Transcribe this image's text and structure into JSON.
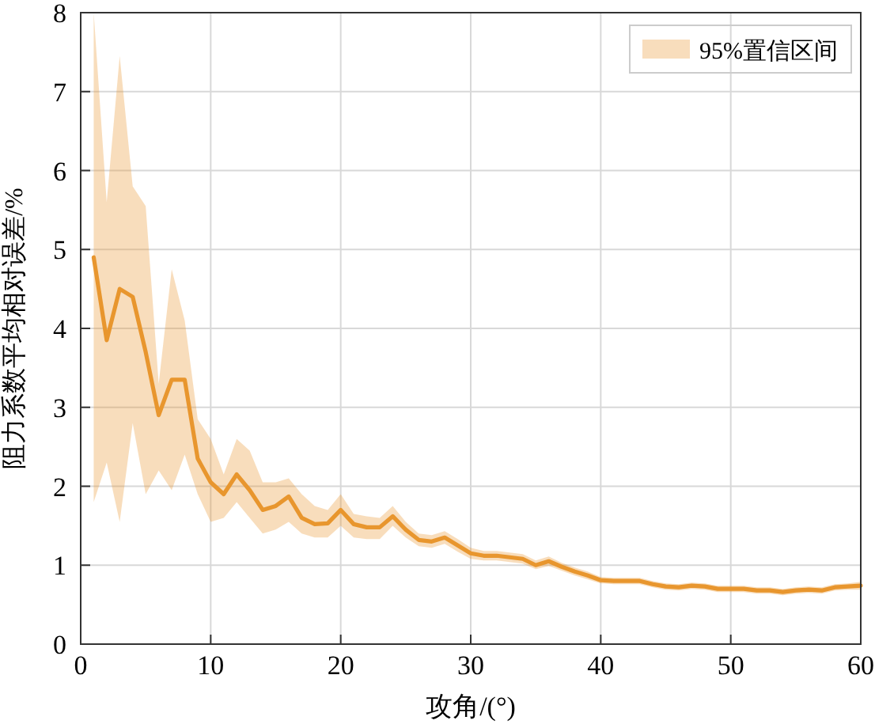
{
  "chart_data": {
    "type": "line",
    "xlabel": "攻角/(°)",
    "ylabel": "阻力系数平均相对误差/%",
    "xlim": [
      0,
      60
    ],
    "ylim": [
      0,
      8
    ],
    "xticks": [
      0,
      10,
      20,
      30,
      40,
      50,
      60
    ],
    "yticks": [
      0,
      1,
      2,
      3,
      4,
      5,
      6,
      7,
      8
    ],
    "grid": true,
    "legend": "top right",
    "line_style": "solid",
    "marker": "none",
    "x": [
      1,
      2,
      3,
      4,
      5,
      6,
      7,
      8,
      9,
      10,
      11,
      12,
      13,
      14,
      15,
      16,
      17,
      18,
      19,
      20,
      21,
      22,
      23,
      24,
      25,
      26,
      27,
      28,
      29,
      30,
      31,
      32,
      33,
      34,
      35,
      36,
      37,
      38,
      39,
      40,
      41,
      42,
      43,
      44,
      45,
      46,
      47,
      48,
      49,
      50,
      51,
      52,
      53,
      54,
      55,
      56,
      57,
      58,
      59,
      60
    ],
    "series": [
      {
        "name": "95%置信区间",
        "color": "#e8962e",
        "values": [
          4.9,
          3.85,
          4.5,
          4.4,
          3.7,
          2.9,
          3.35,
          3.35,
          2.35,
          2.05,
          1.9,
          2.15,
          1.95,
          1.7,
          1.75,
          1.87,
          1.6,
          1.52,
          1.53,
          1.7,
          1.52,
          1.48,
          1.48,
          1.62,
          1.45,
          1.32,
          1.3,
          1.35,
          1.25,
          1.15,
          1.12,
          1.12,
          1.1,
          1.08,
          1.0,
          1.05,
          0.98,
          0.92,
          0.87,
          0.81,
          0.8,
          0.8,
          0.8,
          0.76,
          0.73,
          0.72,
          0.74,
          0.73,
          0.7,
          0.7,
          0.7,
          0.68,
          0.68,
          0.66,
          0.68,
          0.69,
          0.68,
          0.72,
          0.73,
          0.74
        ],
        "lower": [
          1.8,
          2.3,
          1.55,
          2.8,
          1.9,
          2.2,
          1.95,
          2.4,
          1.9,
          1.55,
          1.6,
          1.8,
          1.6,
          1.4,
          1.45,
          1.55,
          1.4,
          1.35,
          1.35,
          1.5,
          1.35,
          1.33,
          1.33,
          1.5,
          1.35,
          1.24,
          1.22,
          1.27,
          1.17,
          1.08,
          1.06,
          1.06,
          1.04,
          1.02,
          0.95,
          0.99,
          0.93,
          0.87,
          0.82,
          0.77,
          0.76,
          0.76,
          0.76,
          0.72,
          0.69,
          0.68,
          0.7,
          0.69,
          0.66,
          0.66,
          0.66,
          0.64,
          0.64,
          0.62,
          0.64,
          0.65,
          0.64,
          0.68,
          0.69,
          0.69
        ],
        "upper": [
          8.0,
          5.6,
          7.45,
          5.8,
          5.55,
          3.3,
          4.75,
          4.1,
          2.85,
          2.6,
          2.15,
          2.6,
          2.45,
          2.05,
          2.05,
          2.1,
          1.9,
          1.75,
          1.7,
          1.9,
          1.65,
          1.62,
          1.6,
          1.75,
          1.55,
          1.4,
          1.38,
          1.43,
          1.33,
          1.22,
          1.18,
          1.18,
          1.16,
          1.14,
          1.06,
          1.11,
          1.03,
          0.97,
          0.92,
          0.85,
          0.84,
          0.84,
          0.84,
          0.8,
          0.77,
          0.76,
          0.78,
          0.77,
          0.74,
          0.74,
          0.74,
          0.72,
          0.72,
          0.7,
          0.72,
          0.73,
          0.72,
          0.76,
          0.77,
          0.79
        ]
      }
    ]
  }
}
